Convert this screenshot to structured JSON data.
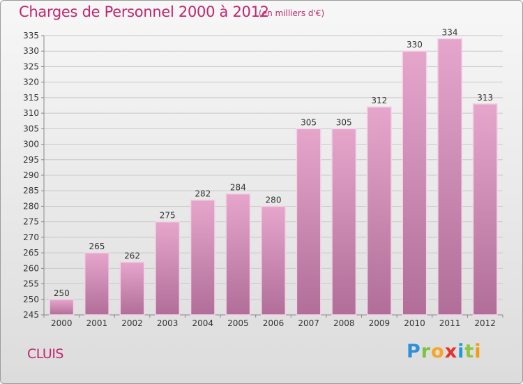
{
  "header": {
    "title": "Charges de Personnel 2000 à 2012",
    "subtitle": "(en milliers d'€)"
  },
  "footer": {
    "city": "CLUIS",
    "logo_text": "Proxiti"
  },
  "colors": {
    "title": "#c0266f",
    "bar_top": "#e6a6cc",
    "bar_bottom": "#b06e98",
    "bar_border": "#f2d3e5"
  },
  "chart_data": {
    "type": "bar",
    "title": "Charges de Personnel 2000 à 2012",
    "subtitle": "(en milliers d'€)",
    "categories": [
      "2000",
      "2001",
      "2002",
      "2003",
      "2004",
      "2005",
      "2006",
      "2007",
      "2008",
      "2009",
      "2010",
      "2011",
      "2012"
    ],
    "values": [
      250,
      265,
      262,
      275,
      282,
      284,
      280,
      305,
      305,
      312,
      330,
      334,
      313
    ],
    "ylim": [
      245,
      335
    ],
    "yticks": [
      245,
      250,
      255,
      260,
      265,
      270,
      275,
      280,
      285,
      290,
      295,
      300,
      305,
      310,
      315,
      320,
      325,
      330,
      335
    ],
    "grid": true,
    "data_labels": true
  }
}
